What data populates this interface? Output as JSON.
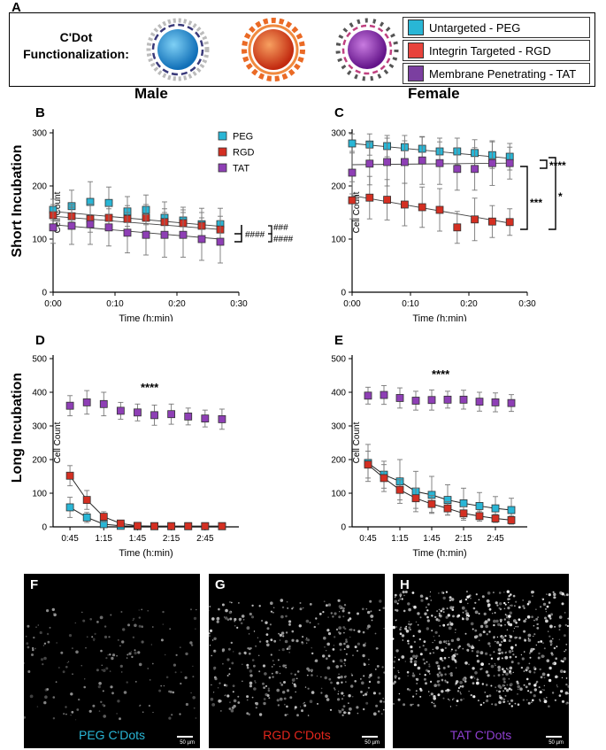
{
  "header": {
    "panel_letter": "A",
    "title_line1": "C'Dot",
    "title_line2": "Functionalization:",
    "legend": [
      {
        "label": "Untargeted - PEG",
        "color": "#29b6d6"
      },
      {
        "label": "Integrin Targeted - RGD",
        "color": "#e8433c"
      },
      {
        "label": "Membrane Penetrating - TAT",
        "color": "#7b3fa0"
      }
    ],
    "particles": [
      {
        "name": "peg-particle",
        "color": "#1f8fd6"
      },
      {
        "name": "rgd-particle",
        "color": "#e3421f"
      },
      {
        "name": "tat-particle",
        "color": "#8a2aa8"
      }
    ]
  },
  "headings": {
    "male": "Male",
    "female": "Female"
  },
  "row_labels": {
    "short": "Short Incubation",
    "long": "Long Incubation"
  },
  "series_colors": {
    "PEG": "#29b6d6",
    "RGD": "#d42f22",
    "TAT": "#8e3fb5"
  },
  "chart_data": [
    {
      "panel": "B",
      "type": "scatter",
      "title": "",
      "xlabel": "Time (h:min)",
      "ylabel": "Cell Count",
      "ylim": [
        0,
        300
      ],
      "yticks": [
        0,
        100,
        200,
        300
      ],
      "xlim": [
        0,
        30
      ],
      "xticks": [
        0,
        10,
        20,
        30
      ],
      "xticklabels": [
        "0:00",
        "0:10",
        "0:20",
        "0:30"
      ],
      "legend": [
        "PEG",
        "RGD",
        "TAT"
      ],
      "x": [
        0,
        3,
        6,
        9,
        12,
        15,
        18,
        21,
        24,
        27
      ],
      "series": [
        {
          "name": "PEG",
          "values": [
            155,
            162,
            170,
            168,
            152,
            155,
            140,
            135,
            128,
            128
          ],
          "err": [
            20,
            30,
            38,
            30,
            28,
            28,
            30,
            25,
            30,
            30
          ],
          "fit": [
            152,
            124
          ]
        },
        {
          "name": "RGD",
          "values": [
            145,
            143,
            138,
            140,
            138,
            140,
            132,
            130,
            125,
            118
          ],
          "err": [
            20,
            22,
            25,
            22,
            25,
            25,
            25,
            25,
            25,
            25
          ],
          "fit": [
            143,
            118
          ]
        },
        {
          "name": "TAT",
          "values": [
            122,
            125,
            128,
            122,
            112,
            108,
            108,
            108,
            100,
            95
          ],
          "err": [
            30,
            35,
            38,
            35,
            38,
            38,
            42,
            42,
            40,
            40
          ],
          "fit": [
            127,
            100
          ]
        }
      ],
      "annotations": [
        "###",
        "####",
        "####"
      ]
    },
    {
      "panel": "C",
      "type": "scatter",
      "title": "",
      "xlabel": "Time (h:min)",
      "ylabel": "Cell Count",
      "ylim": [
        0,
        300
      ],
      "yticks": [
        0,
        100,
        200,
        300
      ],
      "xlim": [
        0,
        30
      ],
      "xticks": [
        0,
        10,
        20,
        30
      ],
      "xticklabels": [
        "0:00",
        "0:10",
        "0:20",
        "0:30"
      ],
      "x": [
        0,
        3,
        6,
        9,
        12,
        15,
        18,
        21,
        24,
        27
      ],
      "series": [
        {
          "name": "PEG",
          "values": [
            280,
            278,
            275,
            273,
            270,
            265,
            265,
            262,
            258,
            255
          ],
          "err": [
            18,
            20,
            20,
            22,
            22,
            25,
            25,
            25,
            25,
            25
          ],
          "fit": [
            280,
            252
          ]
        },
        {
          "name": "RGD",
          "values": [
            173,
            178,
            174,
            165,
            160,
            155,
            122,
            137,
            133,
            132
          ],
          "err": [
            35,
            40,
            38,
            40,
            38,
            40,
            30,
            40,
            30,
            25
          ],
          "fit": [
            182,
            130
          ]
        },
        {
          "name": "TAT",
          "values": [
            225,
            242,
            245,
            245,
            248,
            243,
            232,
            232,
            243,
            243
          ],
          "err": [
            40,
            40,
            45,
            40,
            45,
            40,
            40,
            40,
            42,
            30
          ],
          "fit": [
            240,
            243
          ]
        }
      ],
      "annotations": [
        "****",
        "***",
        "*"
      ]
    },
    {
      "panel": "D",
      "type": "scatter",
      "title": "",
      "xlabel": "Time (h:min)",
      "ylabel": "Cell Count",
      "ylim": [
        0,
        500
      ],
      "yticks": [
        0,
        100,
        200,
        300,
        400,
        500
      ],
      "xlim": [
        30,
        195
      ],
      "xticks": [
        45,
        75,
        105,
        135,
        165
      ],
      "xticklabels": [
        "0:45",
        "1:15",
        "1:45",
        "2:15",
        "2:45"
      ],
      "x": [
        45,
        60,
        75,
        90,
        105,
        120,
        135,
        150,
        165,
        180
      ],
      "series": [
        {
          "name": "PEG",
          "values": [
            58,
            28,
            8,
            3,
            2,
            2,
            2,
            2,
            2,
            2
          ],
          "err": [
            30,
            15,
            8,
            3,
            2,
            2,
            2,
            2,
            2,
            2
          ]
        },
        {
          "name": "RGD",
          "values": [
            152,
            80,
            30,
            10,
            3,
            2,
            2,
            2,
            2,
            2
          ],
          "err": [
            30,
            28,
            15,
            6,
            3,
            2,
            2,
            2,
            2,
            2
          ]
        },
        {
          "name": "TAT",
          "values": [
            360,
            370,
            365,
            345,
            340,
            332,
            335,
            328,
            322,
            320
          ],
          "err": [
            30,
            35,
            35,
            25,
            25,
            30,
            30,
            25,
            25,
            30
          ]
        }
      ],
      "annotations": [
        "****"
      ]
    },
    {
      "panel": "E",
      "type": "scatter",
      "title": "",
      "xlabel": "Time (h:min)",
      "ylabel": "Cell Count",
      "ylim": [
        0,
        500
      ],
      "yticks": [
        0,
        100,
        200,
        300,
        400,
        500
      ],
      "xlim": [
        30,
        195
      ],
      "xticks": [
        45,
        75,
        105,
        135,
        165
      ],
      "xticklabels": [
        "0:45",
        "1:15",
        "1:45",
        "2:15",
        "2:45"
      ],
      "x": [
        45,
        60,
        75,
        90,
        105,
        120,
        135,
        150,
        165,
        180
      ],
      "series": [
        {
          "name": "PEG",
          "values": [
            190,
            155,
            135,
            105,
            95,
            80,
            70,
            62,
            55,
            50
          ],
          "err": [
            55,
            40,
            65,
            60,
            55,
            45,
            45,
            40,
            35,
            35
          ]
        },
        {
          "name": "RGD",
          "values": [
            185,
            145,
            110,
            85,
            68,
            55,
            40,
            32,
            25,
            20
          ],
          "err": [
            40,
            40,
            30,
            30,
            25,
            20,
            20,
            15,
            12,
            12
          ]
        },
        {
          "name": "TAT",
          "values": [
            390,
            392,
            383,
            375,
            377,
            378,
            378,
            372,
            370,
            368
          ],
          "err": [
            25,
            28,
            30,
            28,
            30,
            25,
            28,
            28,
            28,
            25
          ]
        }
      ],
      "annotations": [
        "****"
      ]
    }
  ],
  "micro": [
    {
      "panel": "F",
      "label": "PEG C'Dots",
      "color": "#29b6d6",
      "scale": "50 µm"
    },
    {
      "panel": "G",
      "label": "RGD C'Dots",
      "color": "#e3261c",
      "scale": "50 µm"
    },
    {
      "panel": "H",
      "label": "TAT C'Dots",
      "color": "#8e3fd0",
      "scale": "50 µm"
    }
  ]
}
